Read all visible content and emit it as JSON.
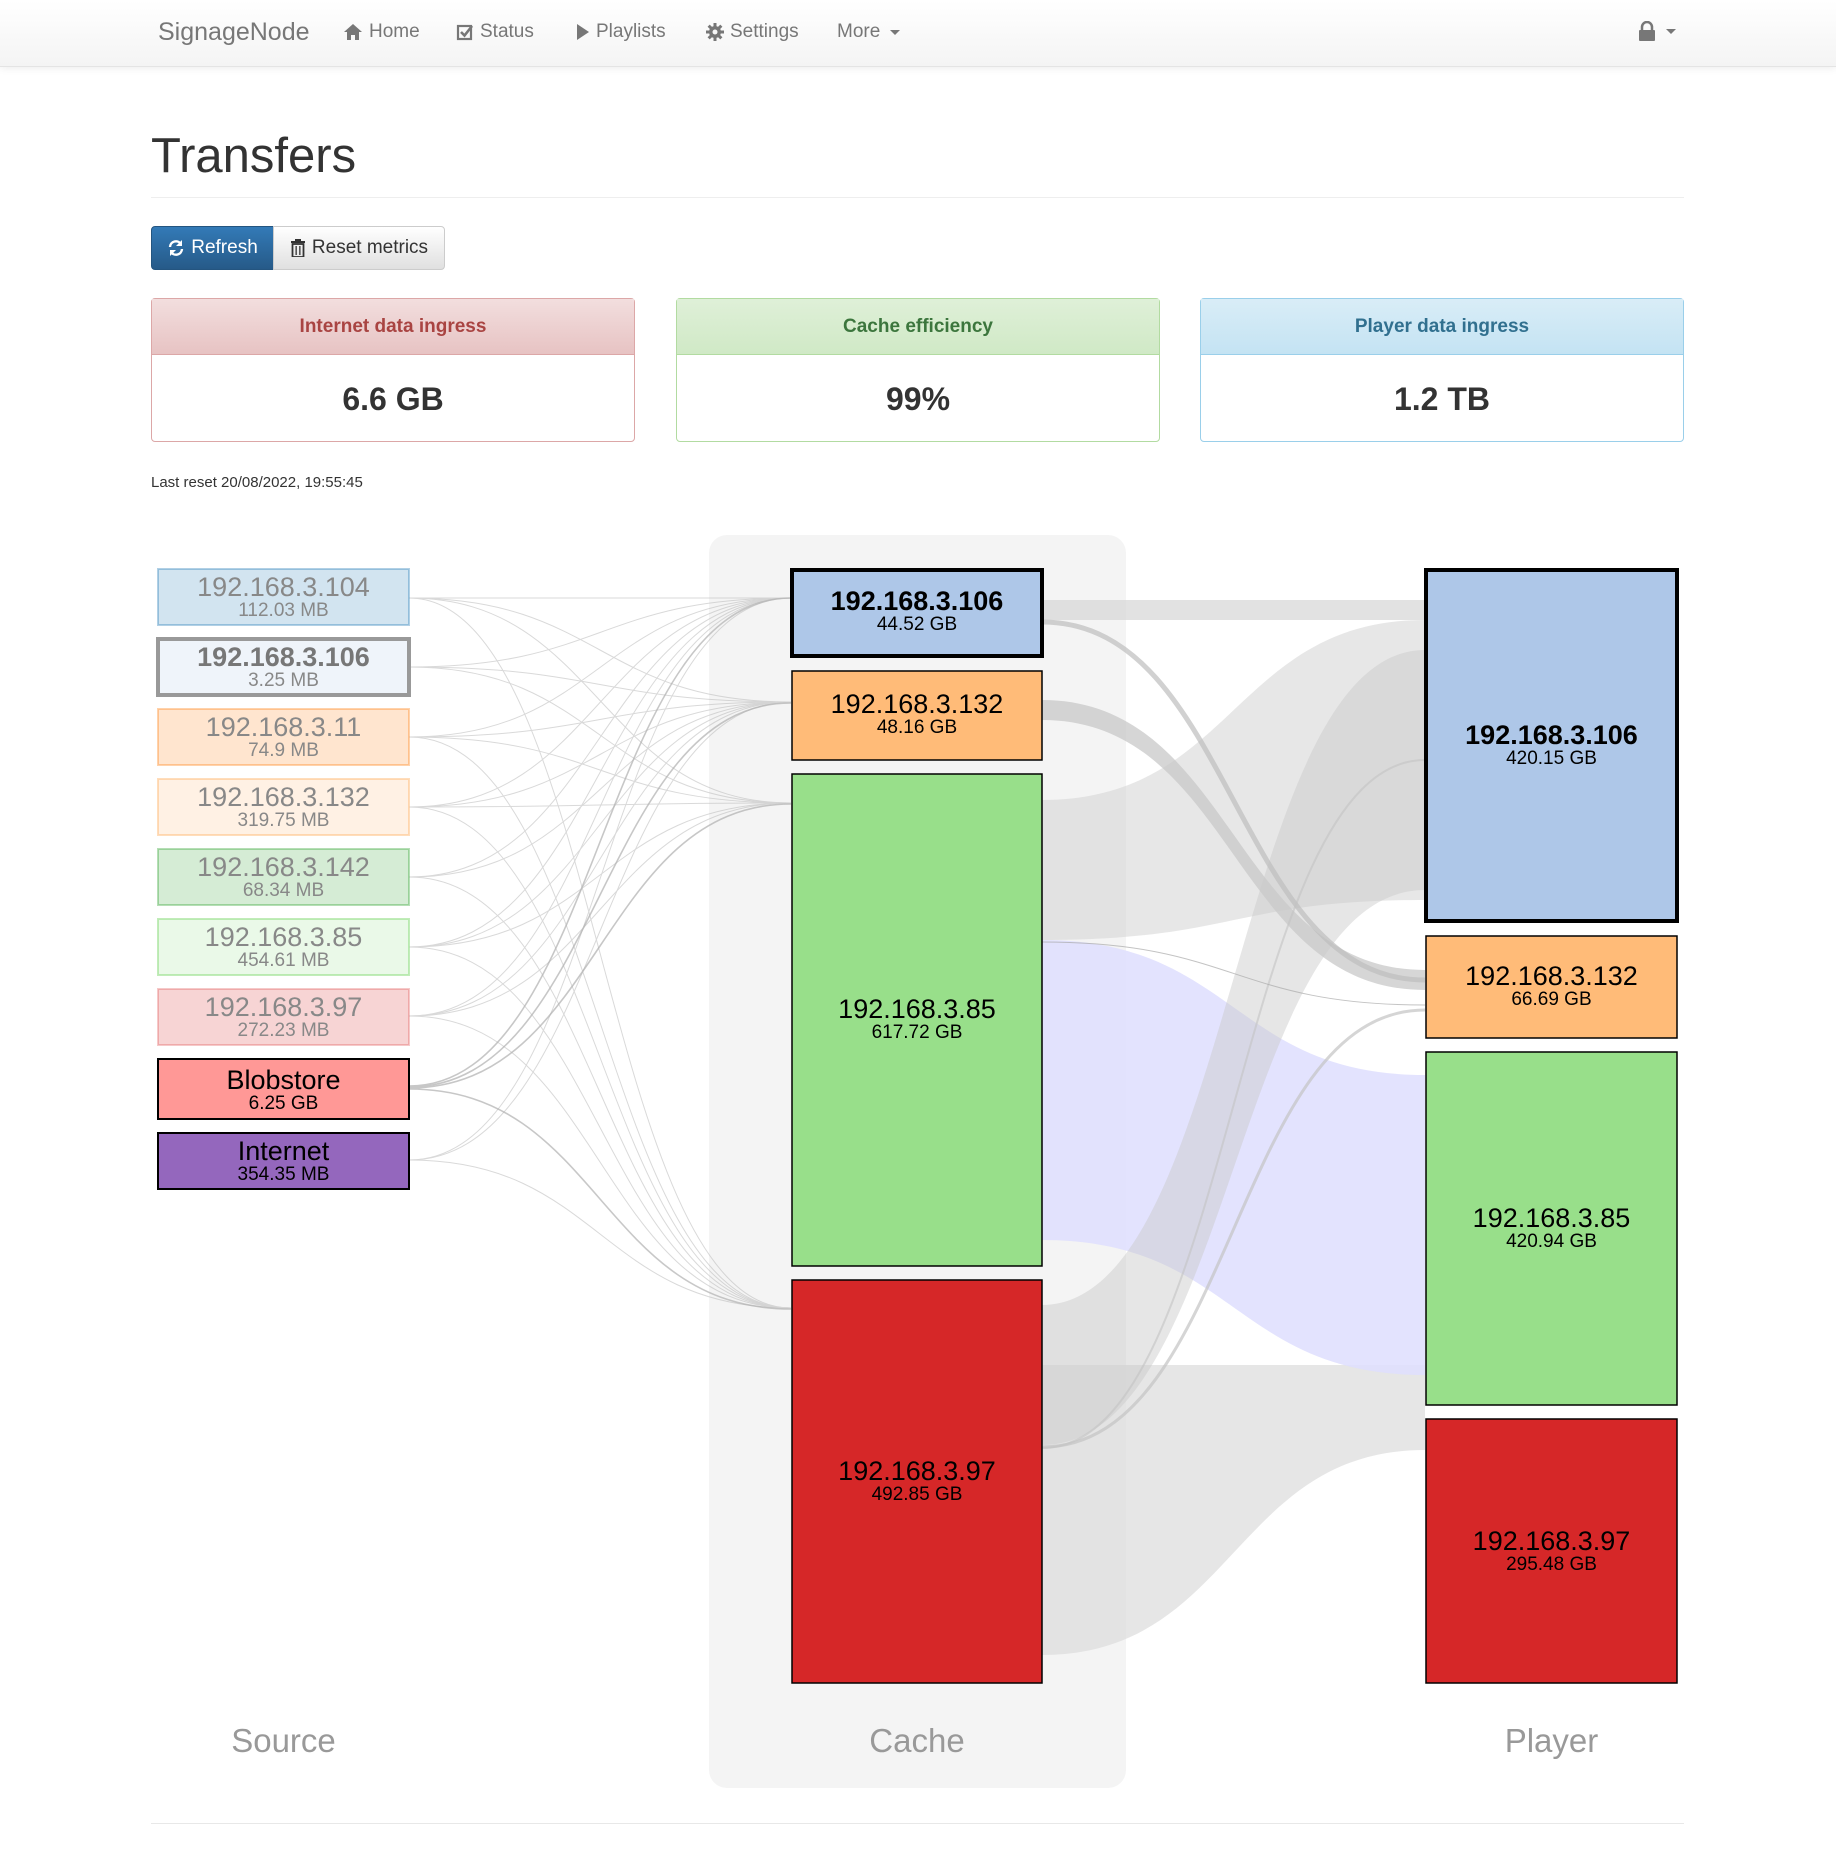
{
  "navbar": {
    "brand": "SignageNode",
    "items": [
      {
        "label": "Home"
      },
      {
        "label": "Status"
      },
      {
        "label": "Playlists"
      },
      {
        "label": "Settings"
      },
      {
        "label": "More"
      }
    ]
  },
  "page": {
    "title": "Transfers",
    "last_reset": "Last reset 20/08/2022, 19:55:45"
  },
  "toolbar": {
    "refresh_label": "Refresh",
    "reset_label": "Reset metrics"
  },
  "metrics": {
    "internet": {
      "label": "Internet data ingress",
      "value": "6.6 GB"
    },
    "cache": {
      "label": "Cache efficiency",
      "value": "99%"
    },
    "player": {
      "label": "Player data ingress",
      "value": "1.2 TB"
    }
  },
  "colors": {
    "primary": "#337ab7",
    "danger_text": "#a94442",
    "success_text": "#3c763d",
    "info_text": "#31708f",
    "node_106": "#aec7e8",
    "node_132": "#ffbb78",
    "node_85": "#98df8a",
    "node_97": "#d62728",
    "node_104": "#1f77b4",
    "node_11": "#ff7f0e",
    "node_142": "#2ca02c",
    "node_blobstore": "#ff9896",
    "node_internet": "#9467bd"
  },
  "diagram": {
    "columns": {
      "source": "Source",
      "cache": "Cache",
      "player": "Player"
    },
    "source_nodes": [
      {
        "id": "src-104",
        "label": "192.168.3.104",
        "size": "112.03 MB"
      },
      {
        "id": "src-106",
        "label": "192.168.3.106",
        "size": "3.25 MB"
      },
      {
        "id": "src-11",
        "label": "192.168.3.11",
        "size": "74.9 MB"
      },
      {
        "id": "src-132",
        "label": "192.168.3.132",
        "size": "319.75 MB"
      },
      {
        "id": "src-142",
        "label": "192.168.3.142",
        "size": "68.34 MB"
      },
      {
        "id": "src-85",
        "label": "192.168.3.85",
        "size": "454.61 MB"
      },
      {
        "id": "src-97",
        "label": "192.168.3.97",
        "size": "272.23 MB"
      },
      {
        "id": "src-blobstore",
        "label": "Blobstore",
        "size": "6.25 GB"
      },
      {
        "id": "src-internet",
        "label": "Internet",
        "size": "354.35 MB"
      }
    ],
    "cache_nodes": [
      {
        "id": "cache-106",
        "label": "192.168.3.106",
        "size": "44.52 GB"
      },
      {
        "id": "cache-132",
        "label": "192.168.3.132",
        "size": "48.16 GB"
      },
      {
        "id": "cache-85",
        "label": "192.168.3.85",
        "size": "617.72 GB"
      },
      {
        "id": "cache-97",
        "label": "192.168.3.97",
        "size": "492.85 GB"
      }
    ],
    "player_nodes": [
      {
        "id": "player-106",
        "label": "192.168.3.106",
        "size": "420.15 GB"
      },
      {
        "id": "player-132",
        "label": "192.168.3.132",
        "size": "66.69 GB"
      },
      {
        "id": "player-85",
        "label": "192.168.3.85",
        "size": "420.94 GB"
      },
      {
        "id": "player-97",
        "label": "192.168.3.97",
        "size": "295.48 GB"
      }
    ]
  }
}
